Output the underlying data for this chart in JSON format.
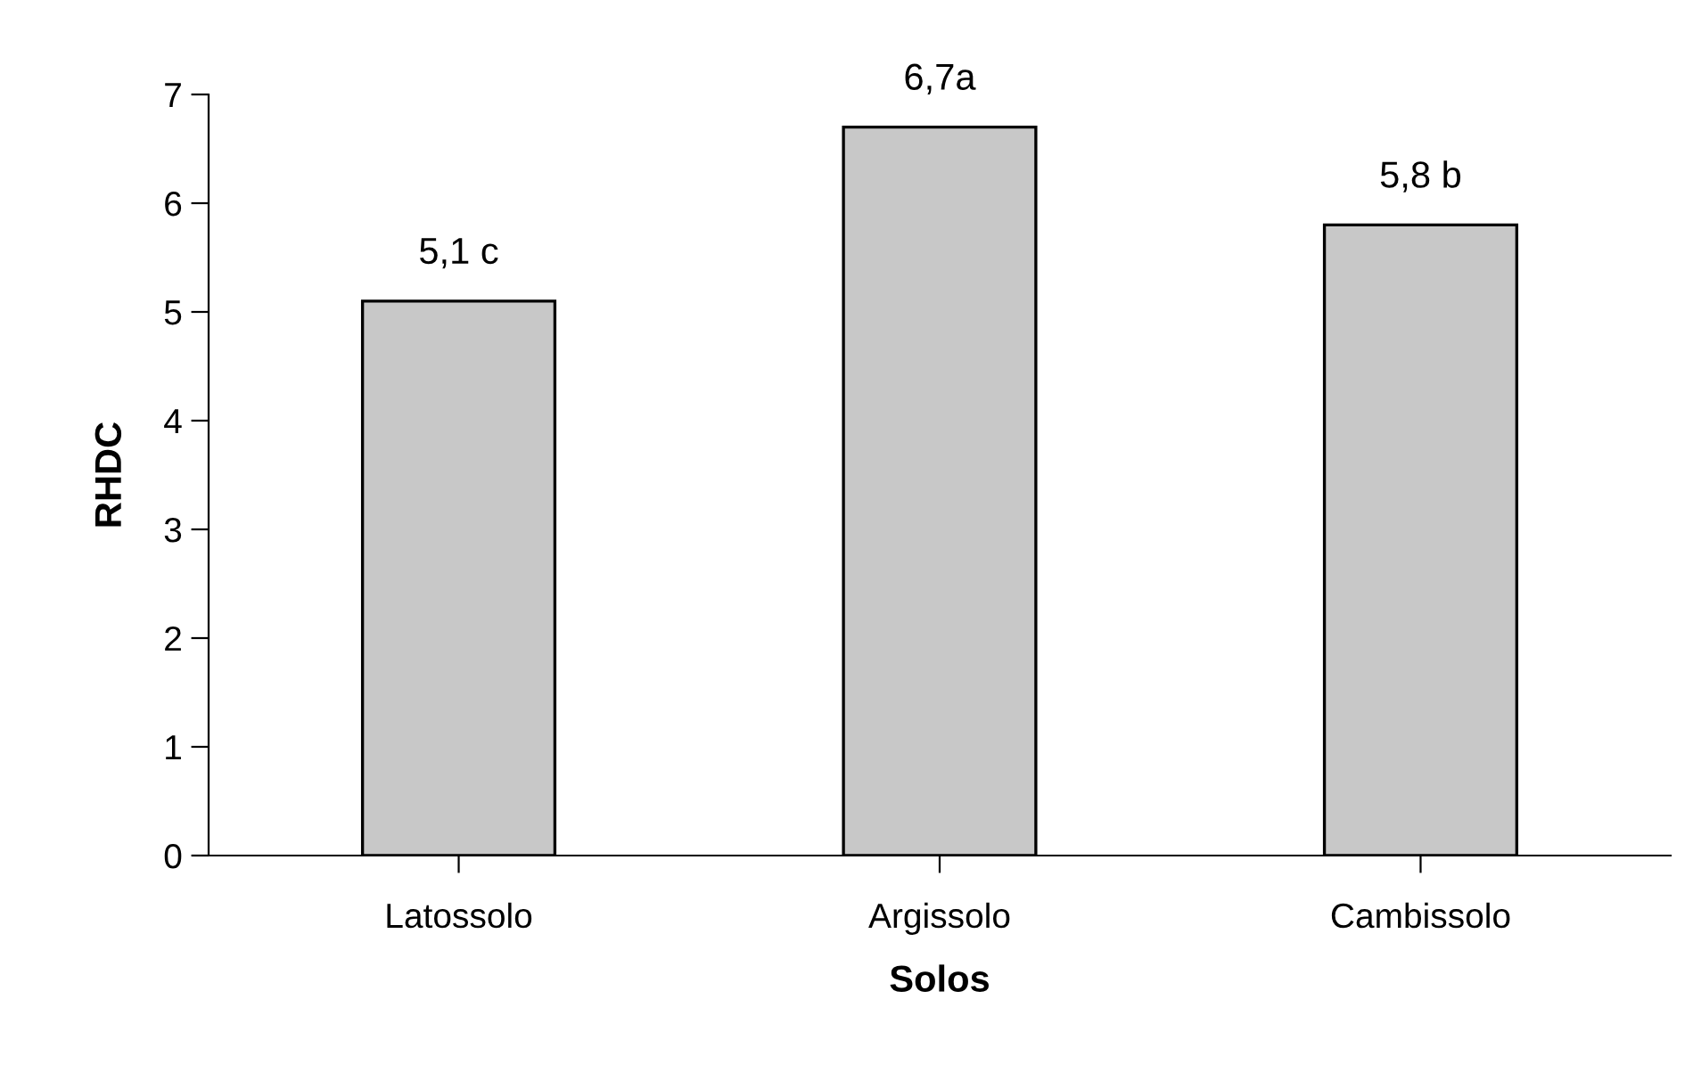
{
  "chart_data": {
    "type": "bar",
    "xlabel": "Solos",
    "ylabel": "RHDC",
    "categories": [
      "Latossolo",
      "Argissolo",
      "Cambissolo"
    ],
    "values": [
      5.1,
      6.7,
      5.8
    ],
    "color": "#c8c8c8",
    "value_labels": [
      "5,1 c",
      "6,7a",
      "5,8 b"
    ],
    "ylim": [
      0,
      7
    ],
    "yticks": [
      0,
      1,
      2,
      3,
      4,
      5,
      6,
      7
    ],
    "grid": false,
    "legend": false
  }
}
